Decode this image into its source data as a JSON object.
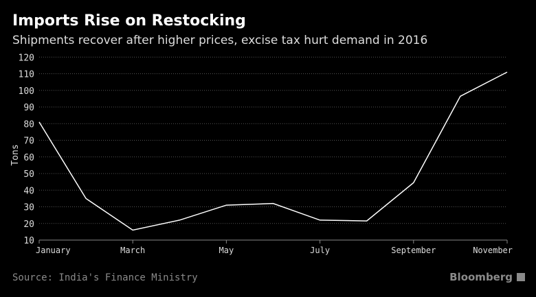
{
  "chart_data": {
    "type": "line",
    "title": "Imports Rise on Restocking",
    "subtitle": "Shipments recover after higher prices, excise tax hurt demand in 2016",
    "ylabel": "Tons",
    "xlabel": "",
    "categories": [
      "January",
      "February",
      "March",
      "April",
      "May",
      "June",
      "July",
      "August",
      "September",
      "October",
      "November"
    ],
    "x_tick_labels": [
      "January",
      "March",
      "May",
      "July",
      "September",
      "November"
    ],
    "y_ticks": [
      10,
      20,
      30,
      40,
      50,
      60,
      70,
      80,
      90,
      100,
      110,
      120
    ],
    "ylim": [
      10,
      120
    ],
    "grid": true,
    "series": [
      {
        "values": [
          81,
          35,
          16,
          22,
          31,
          32,
          22,
          21.5,
          44.5,
          96.5,
          111
        ]
      }
    ],
    "line_color": "#ffffff"
  },
  "source": "Source: India's Finance Ministry",
  "brand": "Bloomberg"
}
